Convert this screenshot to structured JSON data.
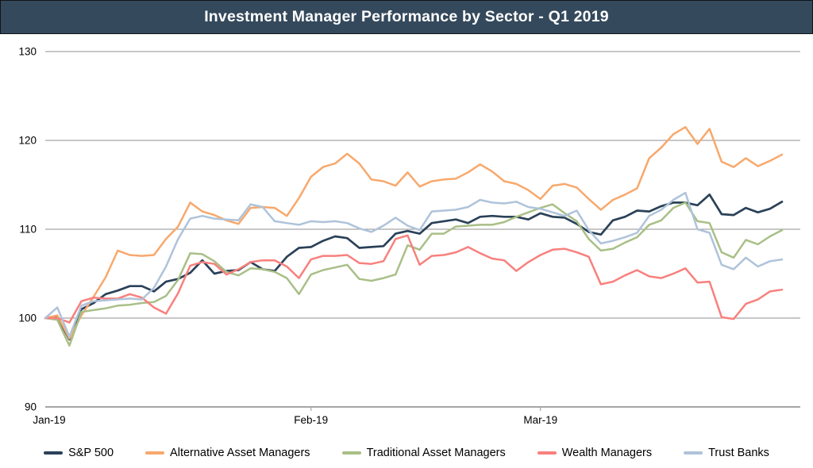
{
  "header": {
    "title": "Investment Manager Performance by Sector - Q1 2019"
  },
  "colors": {
    "header_bg": "#35495c",
    "header_text": "#ffffff",
    "grid": "#8f8f8f",
    "axis": "#a6a6a6",
    "tick_text": "#000000",
    "background": "#ffffff"
  },
  "chart_data": {
    "type": "line",
    "title": "Investment Manager Performance by Sector - Q1 2019",
    "xlabel": "",
    "ylabel": "",
    "x_axis": {
      "tick_labels": [
        "Jan-19",
        "Feb-19",
        "Mar-19"
      ],
      "tick_point_indices": [
        0,
        22,
        41
      ],
      "description": "Daily trading days, Jan 1 - Mar 29 2019, indexed to 100"
    },
    "y_axis": {
      "tick_labels": [
        "90",
        "100",
        "110",
        "120",
        "130"
      ],
      "ticks": [
        90,
        100,
        110,
        120,
        130
      ],
      "ylim": [
        90,
        130
      ]
    },
    "grid": "horizontal",
    "legend_position": "bottom",
    "n_points": 62,
    "series": [
      {
        "name": "S&P 500",
        "color": "#2a4158",
        "stroke_width": 2.7,
        "values": [
          100,
          100.1,
          97.6,
          101,
          101.7,
          102.7,
          103.1,
          103.6,
          103.6,
          103,
          104.1,
          104.4,
          105.1,
          106.5,
          105,
          105.3,
          105.4,
          106.3,
          105.5,
          105.3,
          106.9,
          107.9,
          108,
          108.7,
          109.2,
          109,
          107.9,
          108,
          108.1,
          109.5,
          109.8,
          109.5,
          110.7,
          110.9,
          111.1,
          110.7,
          111.4,
          111.5,
          111.4,
          111.4,
          111.1,
          111.8,
          111.4,
          111.3,
          110.6,
          109.7,
          109.4,
          111,
          111.4,
          112.1,
          112,
          112.6,
          113,
          113,
          112.7,
          113.9,
          111.7,
          111.6,
          112.4,
          111.9,
          112.3,
          113.1
        ]
      },
      {
        "name": "Alternative Asset Managers",
        "color": "#f8a86c",
        "stroke_width": 2.5,
        "values": [
          100,
          100.3,
          97.7,
          100.3,
          102.4,
          104.6,
          107.6,
          107.1,
          107,
          107.1,
          108.9,
          110.3,
          113,
          112,
          111.6,
          111,
          110.6,
          112.4,
          112.5,
          112.4,
          111.5,
          113.5,
          115.9,
          117,
          117.4,
          118.5,
          117.4,
          115.6,
          115.4,
          114.9,
          116.4,
          114.8,
          115.4,
          115.6,
          115.7,
          116.4,
          117.3,
          116.5,
          115.4,
          115.1,
          114.4,
          113.4,
          114.9,
          115.1,
          114.7,
          113.4,
          112.2,
          113.3,
          113.9,
          114.6,
          118,
          119.2,
          120.7,
          121.5,
          119.6,
          121.3,
          117.6,
          117,
          118,
          117.1,
          117.7,
          118.4
        ]
      },
      {
        "name": "Traditional Asset Managers",
        "color": "#a9bf87",
        "stroke_width": 2.5,
        "values": [
          100,
          99.8,
          96.9,
          100.7,
          100.9,
          101.1,
          101.4,
          101.5,
          101.7,
          101.8,
          102.5,
          104.3,
          107.3,
          107.2,
          106.4,
          105.2,
          104.8,
          105.6,
          105.5,
          105.2,
          104.5,
          102.7,
          104.9,
          105.4,
          105.7,
          106,
          104.4,
          104.2,
          104.5,
          104.9,
          108.2,
          107.7,
          109.5,
          109.5,
          110.3,
          110.4,
          110.5,
          110.5,
          110.8,
          111.4,
          111.9,
          112.4,
          112.8,
          111.8,
          110.9,
          108.9,
          107.6,
          107.8,
          108.5,
          109.1,
          110.5,
          111,
          112.4,
          113,
          110.9,
          110.7,
          107.4,
          106.8,
          108.8,
          108.3,
          109.2,
          109.9
        ]
      },
      {
        "name": "Wealth Managers",
        "color": "#f8807d",
        "stroke_width": 2.5,
        "values": [
          100,
          100,
          99.5,
          101.9,
          102.3,
          102.2,
          102.2,
          102.7,
          102.3,
          101.2,
          100.5,
          102.8,
          105.9,
          106.3,
          106.1,
          104.9,
          105.5,
          106.3,
          106.5,
          106.5,
          105.8,
          104.5,
          106.6,
          107,
          107,
          107.1,
          106.2,
          106.1,
          106.4,
          108.9,
          109.3,
          106,
          107,
          107.1,
          107.4,
          108,
          107.3,
          106.7,
          106.5,
          105.3,
          106.3,
          107.1,
          107.7,
          107.8,
          107.4,
          106.9,
          103.8,
          104.1,
          104.8,
          105.4,
          104.7,
          104.5,
          105,
          105.6,
          104,
          104.1,
          100.1,
          99.9,
          101.6,
          102.1,
          103,
          103.2
        ]
      },
      {
        "name": "Trust Banks",
        "color": "#afc3da",
        "stroke_width": 2.5,
        "values": [
          100,
          101.2,
          97.9,
          101.4,
          101.9,
          102,
          102.1,
          102.2,
          102.1,
          103.4,
          105.8,
          108.9,
          111.2,
          111.5,
          111.2,
          111.1,
          111,
          112.8,
          112.5,
          110.9,
          110.7,
          110.5,
          110.9,
          110.8,
          110.9,
          110.7,
          110.1,
          109.7,
          110.4,
          111.3,
          110.4,
          109.9,
          112,
          112.1,
          112.2,
          112.5,
          113.3,
          113,
          112.9,
          113.1,
          112.5,
          112.3,
          111.9,
          111.5,
          112.1,
          109.9,
          108.4,
          108.7,
          109.1,
          109.6,
          111.5,
          112.2,
          113.3,
          114.1,
          110,
          109.6,
          106,
          105.5,
          106.8,
          105.8,
          106.4,
          106.6
        ]
      }
    ]
  },
  "legend": {
    "items": [
      "S&P 500",
      "Alternative Asset Managers",
      "Traditional Asset Managers",
      "Wealth Managers",
      "Trust Banks"
    ]
  }
}
